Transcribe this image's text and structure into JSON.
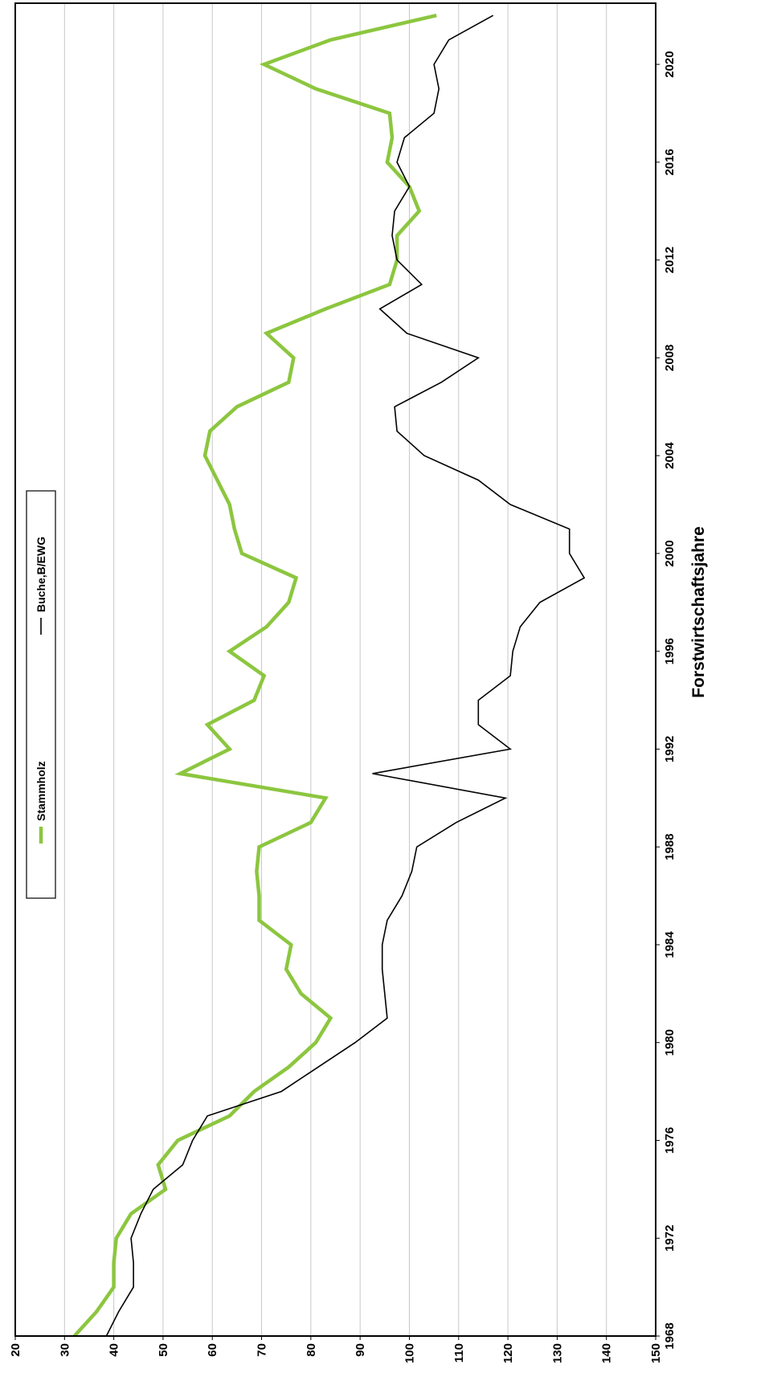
{
  "chart_data": {
    "type": "line",
    "orientation": "rotated-90-clockwise",
    "title": "",
    "xlabel": "Forstwirtschaftsjahre",
    "ylabel": "",
    "xlim": [
      1968,
      2022.5
    ],
    "ylim": [
      20,
      150
    ],
    "y_ticks": [
      "20",
      "30",
      "40",
      "50",
      "60",
      "70",
      "80",
      "90",
      "100",
      "110",
      "120",
      "130",
      "140",
      "150"
    ],
    "x_ticks": [
      "1968",
      "1972",
      "1976",
      "1980",
      "1984",
      "1988",
      "1992",
      "1996",
      "2000",
      "2004",
      "2008",
      "2012",
      "2016",
      "2020"
    ],
    "grid": true,
    "legend_position": "top-right",
    "x": [
      1968,
      1969,
      1970,
      1971,
      1972,
      1973,
      1974,
      1975,
      1976,
      1977,
      1978,
      1979,
      1980,
      1981,
      1982,
      1983,
      1984,
      1985,
      1986,
      1987,
      1988,
      1989,
      1990,
      1991,
      1992,
      1993,
      1994,
      1995,
      1996,
      1997,
      1998,
      1999,
      2000,
      2001,
      2002,
      2003,
      2004,
      2005,
      2006,
      2007,
      2008,
      2009,
      2010,
      2011,
      2012,
      2013,
      2014,
      2015,
      2016,
      2017,
      2018,
      2019,
      2020,
      2021,
      2022
    ],
    "series": [
      {
        "name": "Stammholz",
        "color": "#8cc63f",
        "values": [
          32,
          36.5,
          40,
          40,
          40.5,
          43.5,
          50.5,
          49,
          53,
          63.5,
          68.5,
          75.5,
          81,
          84,
          78,
          75,
          76,
          69.5,
          69.5,
          69,
          69.5,
          80,
          83,
          53.5,
          63.5,
          59,
          68.5,
          70.5,
          63.5,
          71,
          75.5,
          77,
          66,
          64.5,
          63.5,
          61,
          58.5,
          59.5,
          65,
          75.5,
          76.5,
          71,
          83,
          96,
          97.5,
          97.5,
          102,
          100,
          95.5,
          96.5,
          96,
          81,
          70.5,
          84,
          105.5
        ]
      },
      {
        "name": "Buche,B/EWG",
        "color": "#000000",
        "values": [
          38.5,
          41,
          44,
          44,
          43.5,
          45.5,
          48,
          54,
          56,
          59,
          74,
          81.5,
          89,
          95.5,
          95,
          94.5,
          94.5,
          95.5,
          98.5,
          100.5,
          101.5,
          109.5,
          119.5,
          92.5,
          120.5,
          114,
          114,
          120.5,
          121,
          122.5,
          126.5,
          135.5,
          132.5,
          132.5,
          120.5,
          114,
          103,
          97.5,
          97,
          106.5,
          114,
          99.5,
          94,
          102.5,
          97.5,
          96.5,
          97,
          100,
          97.5,
          99,
          105,
          106,
          105,
          108,
          117
        ]
      }
    ]
  }
}
